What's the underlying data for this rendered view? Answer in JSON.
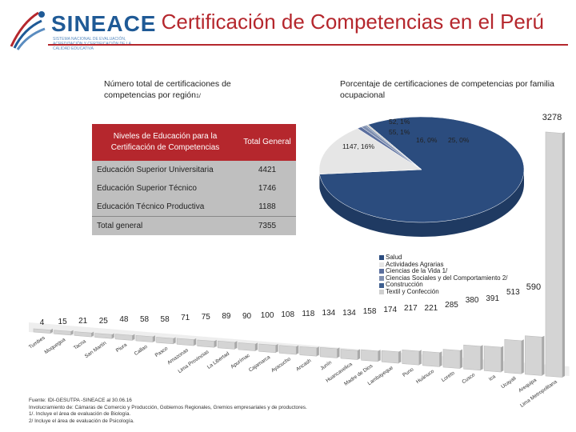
{
  "logo": {
    "name": "SINEACE",
    "sub": "SISTEMA NACIONAL DE EVALUACIÓN, ACREDITACIÓN Y CERTIFICACIÓN DE LA CALIDAD EDUCATIVA"
  },
  "title": "Certificación de Competencias en el Perú",
  "subtitle_left": "Número total de certificaciones de competencias por región",
  "subtitle_left_sup": "1/",
  "subtitle_right": "Porcentaje de certificaciones de competencias por familia ocupacional",
  "table": {
    "headers": [
      "Niveles de Educación para la Certificación de Competencias",
      "Total General"
    ],
    "rows": [
      {
        "label": "Educación Superior Universitaria",
        "value": "4421"
      },
      {
        "label": "Educación Superior Técnico",
        "value": "1746"
      },
      {
        "label": "Educación Técnico Productiva",
        "value": "1188"
      }
    ],
    "total_label": "Total general",
    "total_value": "7355"
  },
  "colors": {
    "accent_red": "#b5272d",
    "brand_blue": "#1f5a96",
    "bar_fill": "#cfcfcf",
    "pie_main": "#2b4c7e"
  },
  "chart_data": [
    {
      "type": "bar",
      "title": "Número total de certificaciones de competencias por región",
      "categories": [
        "Tumbes",
        "Moquegua",
        "Tacna",
        "San Martín",
        "Piura",
        "Callao",
        "Pasco",
        "Amazonas",
        "Lima Provincias",
        "La Libertad",
        "Apurímac",
        "Cajamarca",
        "Ayacucho",
        "Ancash",
        "Junín",
        "Huancavelica",
        "Madre de Dios",
        "Lambayeque",
        "Puno",
        "Huánuco",
        "Loreto",
        "Cusco",
        "Ica",
        "Ucayali",
        "Arequipa",
        "Lima Metropolitana"
      ],
      "values": [
        4,
        15,
        21,
        25,
        48,
        58,
        58,
        71,
        75,
        89,
        90,
        100,
        108,
        118,
        134,
        134,
        158,
        174,
        217,
        221,
        285,
        380,
        391,
        513,
        590,
        3278
      ],
      "value_labels": [
        "4",
        "15",
        "21",
        "25",
        "48",
        "58",
        "58",
        "71",
        "75",
        "89",
        "90",
        "100",
        "108",
        "118",
        "134",
        "134",
        "158",
        "174",
        "217",
        "221",
        "285",
        "380",
        "391",
        "513",
        "590",
        "3278"
      ],
      "category_labels": [
        "Tumbes",
        "Moquegua",
        "Tacna",
        "San Martín",
        "Piura",
        "Callao",
        "Pasco",
        "Amazonas",
        "Lima Provincias",
        "La Libertad",
        "Apurímac",
        "Cajamarca",
        "Ayacucho",
        "Ancash",
        "Junín",
        "Huancavelica",
        "Madre de Dios",
        "Lambayeque",
        "Puno",
        "Huánuco",
        "Loreto",
        "Cusco",
        "Ica",
        "Ucayali",
        "Arequipa",
        "Lima Metropolitana"
      ]
    },
    {
      "type": "pie",
      "title": "Porcentaje de certificaciones de competencias por familia ocupacional",
      "categories": [
        "Salud",
        "Actividades Agrarias",
        "Ciencias de la Vida 1/",
        "Ciencias Sociales y del Comportamiento 2/",
        "Construcción",
        "Textil y Confección"
      ],
      "values": [
        6049,
        1147,
        55,
        52,
        16,
        25
      ],
      "slice_labels": [
        "",
        "1147, 16%",
        "55, 1%",
        "52, 1%",
        "16, 0%",
        "25, 0%"
      ],
      "legend_colors": [
        "#2b4c7e",
        "#e6e6e6",
        "#5b6f9e",
        "#7f8fb0",
        "#3f5f8f",
        "#cfcfcf"
      ],
      "legend_position": "bottom-right"
    }
  ],
  "footer": {
    "source": "Fuente: IDI-GESUTPA -SINEACE al 30.06.16",
    "note": "Involucramiento de: Cámaras de Comercio y Producción, Gobiernos Regionales, Gremios empresariales y de productores.",
    "fn1": "1/. Incluye el área de evaluación de Biología.",
    "fn2": "2/ Incluye el área de evaluación de Psicología."
  }
}
